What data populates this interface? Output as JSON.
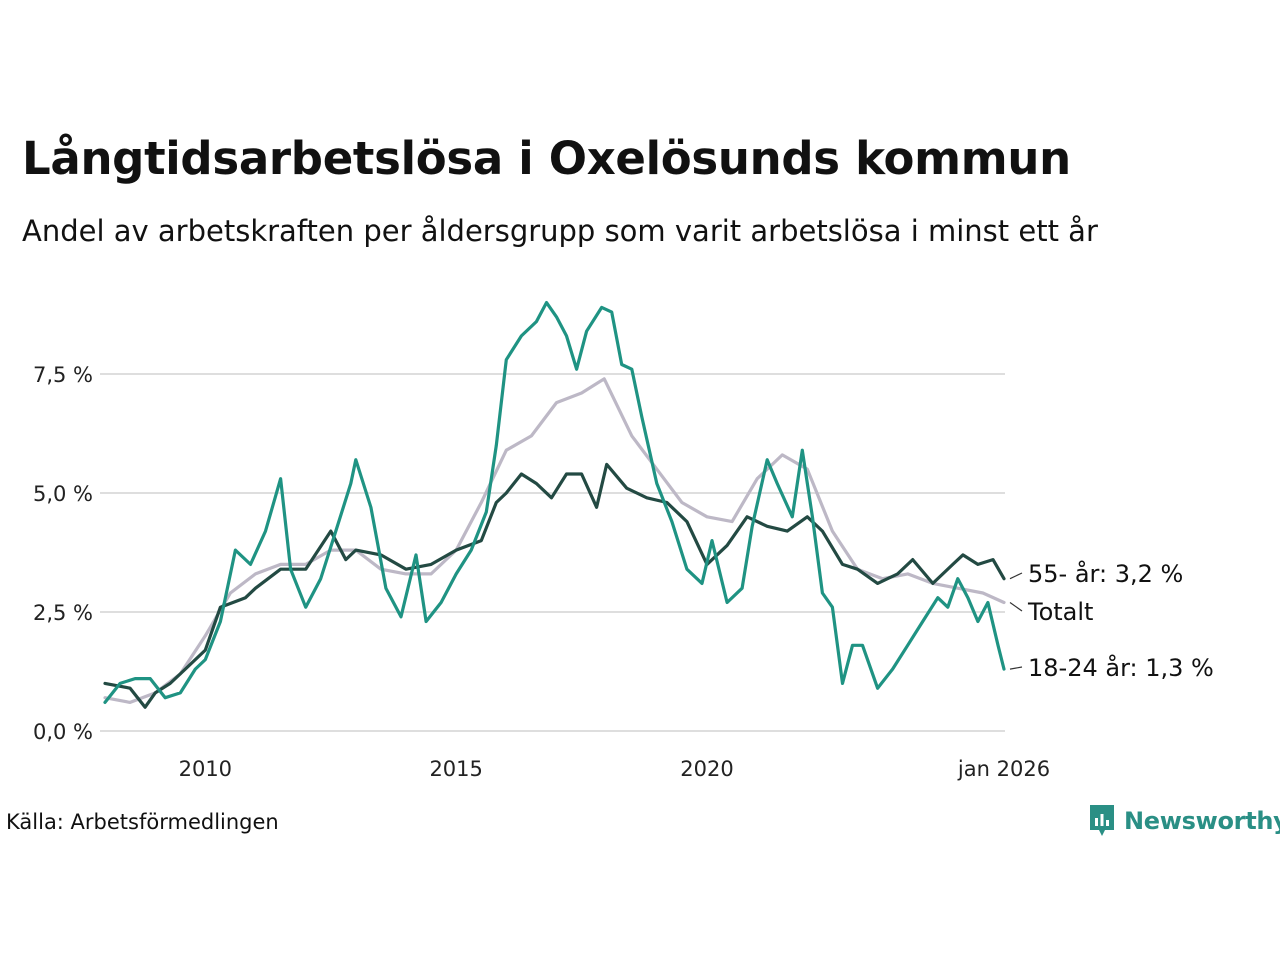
{
  "title": "Långtidsarbetslösa i Oxelösunds kommun",
  "subtitle": "Andel av arbetskraften per åldersgrupp som varit arbetslösa i minst ett år",
  "source": "Källa: Arbetsförmedlingen",
  "brand": {
    "name": "Newsworthy",
    "icon": "newsworthy-logo-icon"
  },
  "chart_data": {
    "type": "line",
    "title": "Långtidsarbetslösa i Oxelösunds kommun",
    "ylabel": "",
    "xlabel": "",
    "ylim": [
      0,
      9.5
    ],
    "xlim": [
      2008.0,
      2025.92
    ],
    "y_ticks": [
      {
        "value": 0,
        "label": "0,0 %"
      },
      {
        "value": 2.5,
        "label": "2,5 %"
      },
      {
        "value": 5,
        "label": "5,0 %"
      },
      {
        "value": 7.5,
        "label": "7,5 %"
      }
    ],
    "x_ticks": [
      {
        "value": 2010,
        "label": "2010"
      },
      {
        "value": 2015,
        "label": "2015"
      },
      {
        "value": 2020,
        "label": "2020"
      },
      {
        "value": 2025.92,
        "label": "jan 2026"
      }
    ],
    "grid": true,
    "legend": "direct labels at right end of lines",
    "series": [
      {
        "name": "Totalt",
        "label": "Totalt",
        "color": "#bdb8c6",
        "x": [
          2008.0,
          2008.5,
          2009.0,
          2009.5,
          2010.0,
          2010.5,
          2011.0,
          2011.5,
          2012.0,
          2012.5,
          2013.0,
          2013.5,
          2014.0,
          2014.5,
          2015.0,
          2015.5,
          2016.0,
          2016.5,
          2017.0,
          2017.5,
          2017.95,
          2018.5,
          2019.0,
          2019.5,
          2020.0,
          2020.5,
          2021.0,
          2021.5,
          2022.0,
          2022.5,
          2023.0,
          2023.5,
          2024.0,
          2024.5,
          2025.0,
          2025.5,
          2025.92
        ],
        "values": [
          0.7,
          0.6,
          0.8,
          1.2,
          2.0,
          2.9,
          3.3,
          3.5,
          3.5,
          3.8,
          3.8,
          3.4,
          3.3,
          3.3,
          3.8,
          4.8,
          5.9,
          6.2,
          6.9,
          7.1,
          7.4,
          6.2,
          5.5,
          4.8,
          4.5,
          4.4,
          5.3,
          5.8,
          5.5,
          4.2,
          3.4,
          3.2,
          3.3,
          3.1,
          3.0,
          2.9,
          2.7
        ]
      },
      {
        "name": "55- år",
        "label": "55- år: 3,2 %",
        "color": "#234a43",
        "x": [
          2008.0,
          2008.5,
          2008.8,
          2009.0,
          2009.3,
          2009.6,
          2010.0,
          2010.3,
          2010.8,
          2011.0,
          2011.5,
          2012.0,
          2012.5,
          2012.8,
          2013.0,
          2013.5,
          2014.0,
          2014.5,
          2015.0,
          2015.5,
          2015.8,
          2016.0,
          2016.3,
          2016.6,
          2016.9,
          2017.2,
          2017.5,
          2017.8,
          2018.0,
          2018.4,
          2018.8,
          2019.2,
          2019.6,
          2020.0,
          2020.4,
          2020.8,
          2021.2,
          2021.6,
          2022.0,
          2022.3,
          2022.7,
          2023.0,
          2023.4,
          2023.8,
          2024.1,
          2024.5,
          2024.9,
          2025.1,
          2025.4,
          2025.7,
          2025.92
        ],
        "values": [
          1.0,
          0.9,
          0.5,
          0.8,
          1.0,
          1.3,
          1.7,
          2.6,
          2.8,
          3.0,
          3.4,
          3.4,
          4.2,
          3.6,
          3.8,
          3.7,
          3.4,
          3.5,
          3.8,
          4.0,
          4.8,
          5.0,
          5.4,
          5.2,
          4.9,
          5.4,
          5.4,
          4.7,
          5.6,
          5.1,
          4.9,
          4.8,
          4.4,
          3.5,
          3.9,
          4.5,
          4.3,
          4.2,
          4.5,
          4.2,
          3.5,
          3.4,
          3.1,
          3.3,
          3.6,
          3.1,
          3.5,
          3.7,
          3.5,
          3.6,
          3.2
        ]
      },
      {
        "name": "18-24 år",
        "label": "18-24 år: 1,3 %",
        "color": "#1f9383",
        "x": [
          2008.0,
          2008.3,
          2008.6,
          2008.9,
          2009.2,
          2009.5,
          2009.8,
          2010.0,
          2010.3,
          2010.6,
          2010.9,
          2011.2,
          2011.5,
          2011.7,
          2012.0,
          2012.3,
          2012.6,
          2012.9,
          2013.0,
          2013.3,
          2013.6,
          2013.9,
          2014.2,
          2014.4,
          2014.7,
          2015.0,
          2015.3,
          2015.6,
          2015.8,
          2016.0,
          2016.3,
          2016.6,
          2016.8,
          2017.0,
          2017.2,
          2017.4,
          2017.6,
          2017.9,
          2018.1,
          2018.3,
          2018.5,
          2018.7,
          2019.0,
          2019.3,
          2019.6,
          2019.9,
          2020.1,
          2020.4,
          2020.7,
          2020.9,
          2021.2,
          2021.4,
          2021.7,
          2021.9,
          2022.1,
          2022.3,
          2022.5,
          2022.7,
          2022.9,
          2023.1,
          2023.4,
          2023.7,
          2024.0,
          2024.3,
          2024.6,
          2024.8,
          2025.0,
          2025.2,
          2025.4,
          2025.6,
          2025.8,
          2025.92
        ],
        "values": [
          0.6,
          1.0,
          1.1,
          1.1,
          0.7,
          0.8,
          1.3,
          1.5,
          2.3,
          3.8,
          3.5,
          4.2,
          5.3,
          3.4,
          2.6,
          3.2,
          4.2,
          5.2,
          5.7,
          4.7,
          3.0,
          2.4,
          3.7,
          2.3,
          2.7,
          3.3,
          3.8,
          4.6,
          6.0,
          7.8,
          8.3,
          8.6,
          9.0,
          8.7,
          8.3,
          7.6,
          8.4,
          8.9,
          8.8,
          7.7,
          7.6,
          6.6,
          5.2,
          4.4,
          3.4,
          3.1,
          4.0,
          2.7,
          3.0,
          4.3,
          5.7,
          5.2,
          4.5,
          5.9,
          4.5,
          2.9,
          2.6,
          1.0,
          1.8,
          1.8,
          0.9,
          1.3,
          1.8,
          2.3,
          2.8,
          2.6,
          3.2,
          2.8,
          2.3,
          2.7,
          1.8,
          1.3
        ]
      }
    ]
  }
}
